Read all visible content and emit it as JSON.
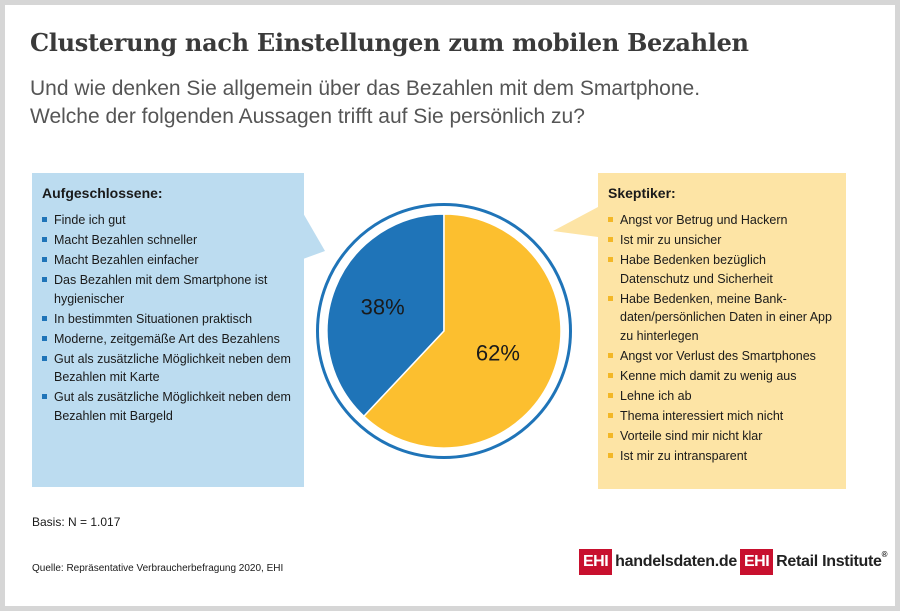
{
  "title": "Clusterung nach Einstellungen zum mobilen Bezahlen",
  "subtitle_lines": [
    "Und wie denken Sie allgemein über das Bezahlen mit dem Smartphone.",
    "Welche der folgenden Aussagen trifft auf Sie persönlich zu?"
  ],
  "left_box": {
    "heading": "Aufgeschlossene:",
    "items": [
      "Finde ich gut",
      "Macht Bezahlen schneller",
      "Macht Bezahlen einfacher",
      "Das Bezahlen mit dem Smartphone ist hygienischer",
      "In bestimmten Situationen praktisch",
      "Moderne, zeitgemäße Art des Bezahlens",
      "Gut als zusätzliche Möglichkeit neben dem Bezahlen mit Karte",
      "Gut als zusätzliche Möglichkeit neben dem Bezahlen mit Bargeld"
    ]
  },
  "right_box": {
    "heading": "Skeptiker:",
    "items": [
      "Angst vor Betrug und Hackern",
      "Ist mir zu unsicher",
      "Habe Bedenken bezüglich Datenschutz und Sicherheit",
      "Habe Bedenken, meine Bank-daten/persönlichen Daten in einer App zu hinterlegen",
      "Angst vor Verlust des Smartphones",
      "Kenne mich damit zu wenig aus",
      "Lehne ich ab",
      "Thema interessiert mich nicht",
      "Vorteile sind mir nicht klar",
      "Ist mir zu intransparent"
    ]
  },
  "chart_data": {
    "type": "pie",
    "slices": [
      {
        "label": "38%",
        "value": 38,
        "color": "#1f74b8",
        "group": "Aufgeschlossene"
      },
      {
        "label": "62%",
        "value": 62,
        "color": "#fcbf2f",
        "group": "Skeptiker"
      }
    ],
    "ring_color": "#1f74b8"
  },
  "basis": "Basis: N = 1.017",
  "source": "Quelle: Repräsentative Verbraucherbefragung 2020, EHI",
  "logos": [
    {
      "mark": "EHI",
      "text": "handelsdaten.de"
    },
    {
      "mark": "EHI",
      "text": "Retail Institute",
      "reg": "®"
    }
  ],
  "colors": {
    "blue": "#1f74b8",
    "yellow": "#fcbf2f",
    "light_blue": "#bcdcf0",
    "light_yellow": "#fde4a5",
    "brand_red": "#c8102e"
  }
}
